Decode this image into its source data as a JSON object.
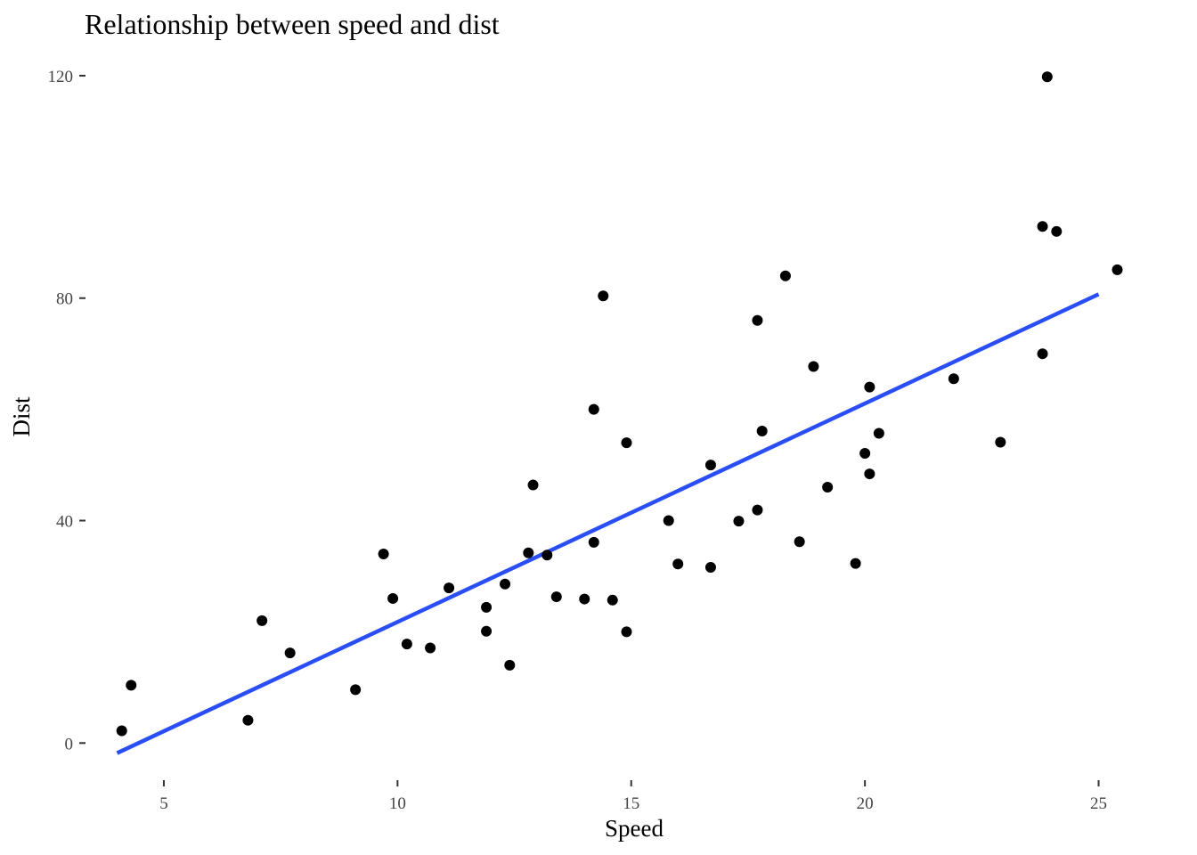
{
  "chart_data": {
    "type": "scatter",
    "title": "Relationship between speed and dist",
    "xlabel": "Speed",
    "ylabel": "Dist",
    "xlim": [
      3.4,
      26.0
    ],
    "ylim": [
      -7,
      124
    ],
    "x_ticks": [
      5,
      10,
      15,
      20,
      25
    ],
    "y_ticks": [
      0,
      40,
      80,
      120
    ],
    "grid": false,
    "legend": "none",
    "colors": {
      "points": "#000000",
      "fit_line": "#2a4ef5"
    },
    "points": [
      {
        "x": 4.1,
        "y": 2.2
      },
      {
        "x": 4.3,
        "y": 10.4
      },
      {
        "x": 6.8,
        "y": 4.1
      },
      {
        "x": 7.1,
        "y": 22.0
      },
      {
        "x": 7.7,
        "y": 16.2
      },
      {
        "x": 9.1,
        "y": 9.6
      },
      {
        "x": 9.7,
        "y": 34.0
      },
      {
        "x": 9.9,
        "y": 26.0
      },
      {
        "x": 10.2,
        "y": 17.8
      },
      {
        "x": 10.7,
        "y": 17.1
      },
      {
        "x": 11.1,
        "y": 27.9
      },
      {
        "x": 11.9,
        "y": 24.4
      },
      {
        "x": 11.9,
        "y": 20.1
      },
      {
        "x": 12.3,
        "y": 28.6
      },
      {
        "x": 12.4,
        "y": 14.0
      },
      {
        "x": 12.8,
        "y": 34.2
      },
      {
        "x": 12.9,
        "y": 46.4
      },
      {
        "x": 13.2,
        "y": 33.8
      },
      {
        "x": 13.4,
        "y": 26.3
      },
      {
        "x": 14.0,
        "y": 25.9
      },
      {
        "x": 14.2,
        "y": 60.0
      },
      {
        "x": 14.2,
        "y": 36.1
      },
      {
        "x": 14.4,
        "y": 80.4
      },
      {
        "x": 14.6,
        "y": 25.7
      },
      {
        "x": 14.9,
        "y": 54.0
      },
      {
        "x": 14.9,
        "y": 20.0
      },
      {
        "x": 15.8,
        "y": 40.0
      },
      {
        "x": 16.0,
        "y": 32.2
      },
      {
        "x": 16.7,
        "y": 50.0
      },
      {
        "x": 16.7,
        "y": 31.6
      },
      {
        "x": 17.3,
        "y": 39.9
      },
      {
        "x": 17.7,
        "y": 76.0
      },
      {
        "x": 17.7,
        "y": 41.9
      },
      {
        "x": 17.8,
        "y": 56.1
      },
      {
        "x": 18.3,
        "y": 84.0
      },
      {
        "x": 18.6,
        "y": 36.2
      },
      {
        "x": 18.9,
        "y": 67.7
      },
      {
        "x": 19.2,
        "y": 46.0
      },
      {
        "x": 19.8,
        "y": 32.3
      },
      {
        "x": 20.0,
        "y": 52.1
      },
      {
        "x": 20.1,
        "y": 64.0
      },
      {
        "x": 20.1,
        "y": 48.4
      },
      {
        "x": 20.3,
        "y": 55.7
      },
      {
        "x": 21.9,
        "y": 65.5
      },
      {
        "x": 22.9,
        "y": 54.1
      },
      {
        "x": 23.8,
        "y": 70.0
      },
      {
        "x": 23.8,
        "y": 92.9
      },
      {
        "x": 23.9,
        "y": 119.8
      },
      {
        "x": 24.1,
        "y": 92.0
      },
      {
        "x": 25.4,
        "y": 85.1
      }
    ],
    "fit_line": {
      "x": [
        4.0,
        25.0
      ],
      "y": [
        -1.8,
        80.7
      ]
    }
  }
}
